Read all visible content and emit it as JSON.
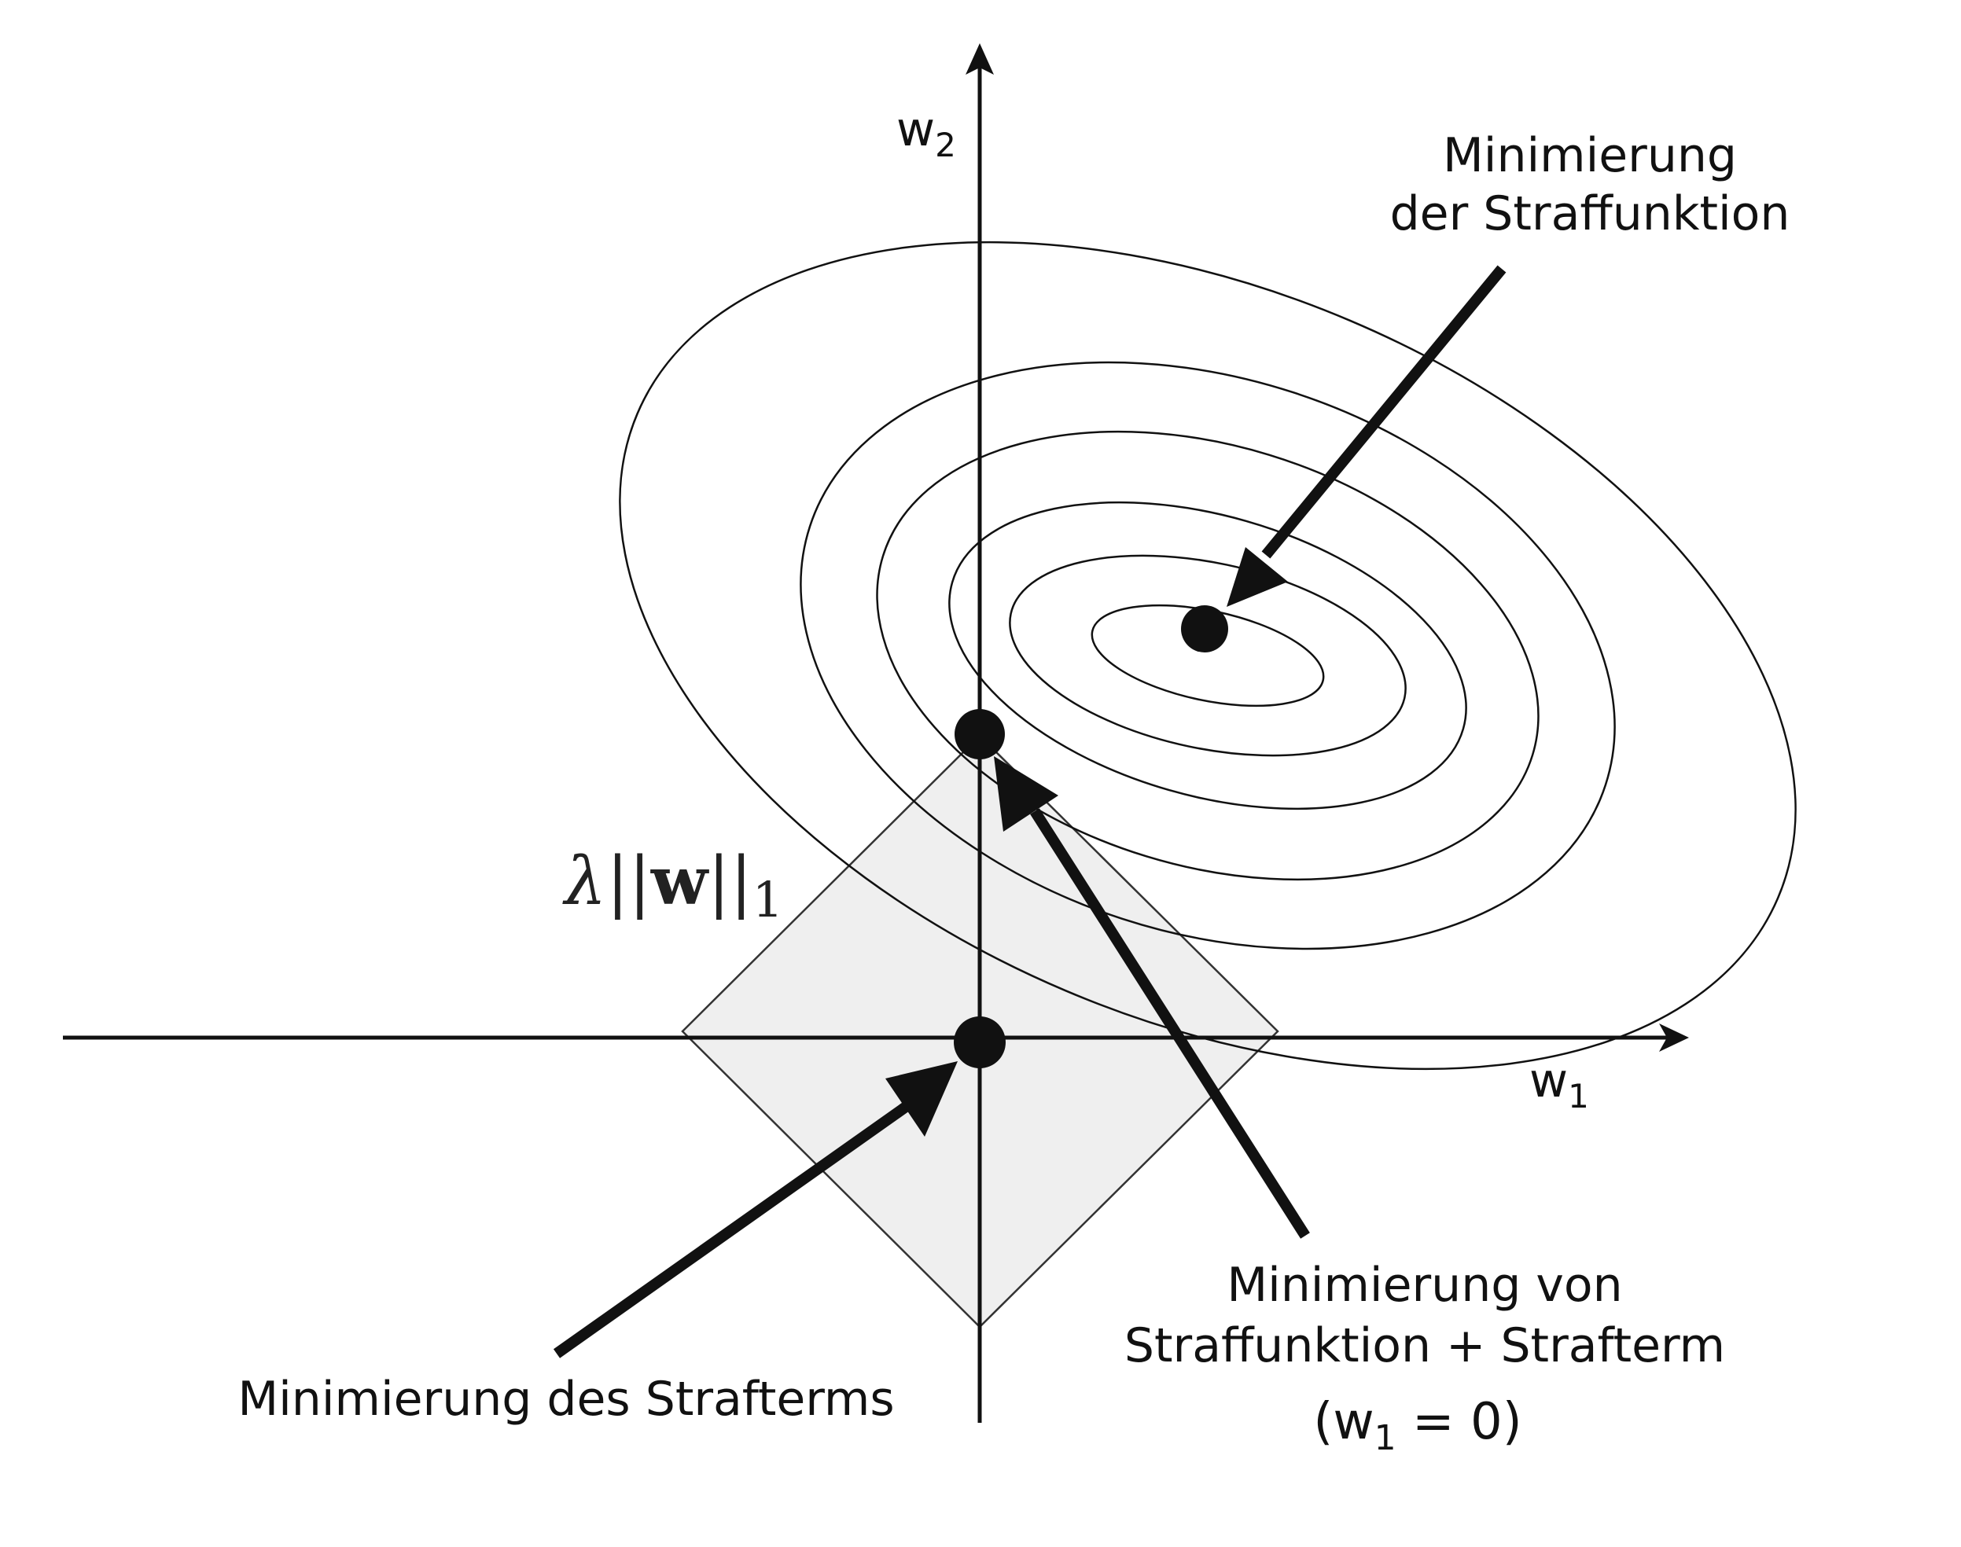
{
  "axes": {
    "x_label": "w",
    "x_subscript": "1",
    "y_label": "w",
    "y_subscript": "2"
  },
  "penalty_region": {
    "lambda": "λ",
    "norm_left": "||",
    "vector": "w",
    "norm_right": "||",
    "subscript": "1"
  },
  "annotations": {
    "cost_min_line1": "Minimierung",
    "cost_min_line2": "der Straffunktion",
    "penalty_min": "Minimierung des Strafterms",
    "combined_line1": "Minimierung von",
    "combined_line2": "Straffunktion + Strafterm",
    "combined_cond_open": "(w",
    "combined_cond_sub": "1",
    "combined_cond_rest": " = 0)"
  },
  "colors": {
    "stroke": "#111111",
    "region_fill": "#efefef",
    "region_stroke": "#333333",
    "point": "#111111"
  }
}
